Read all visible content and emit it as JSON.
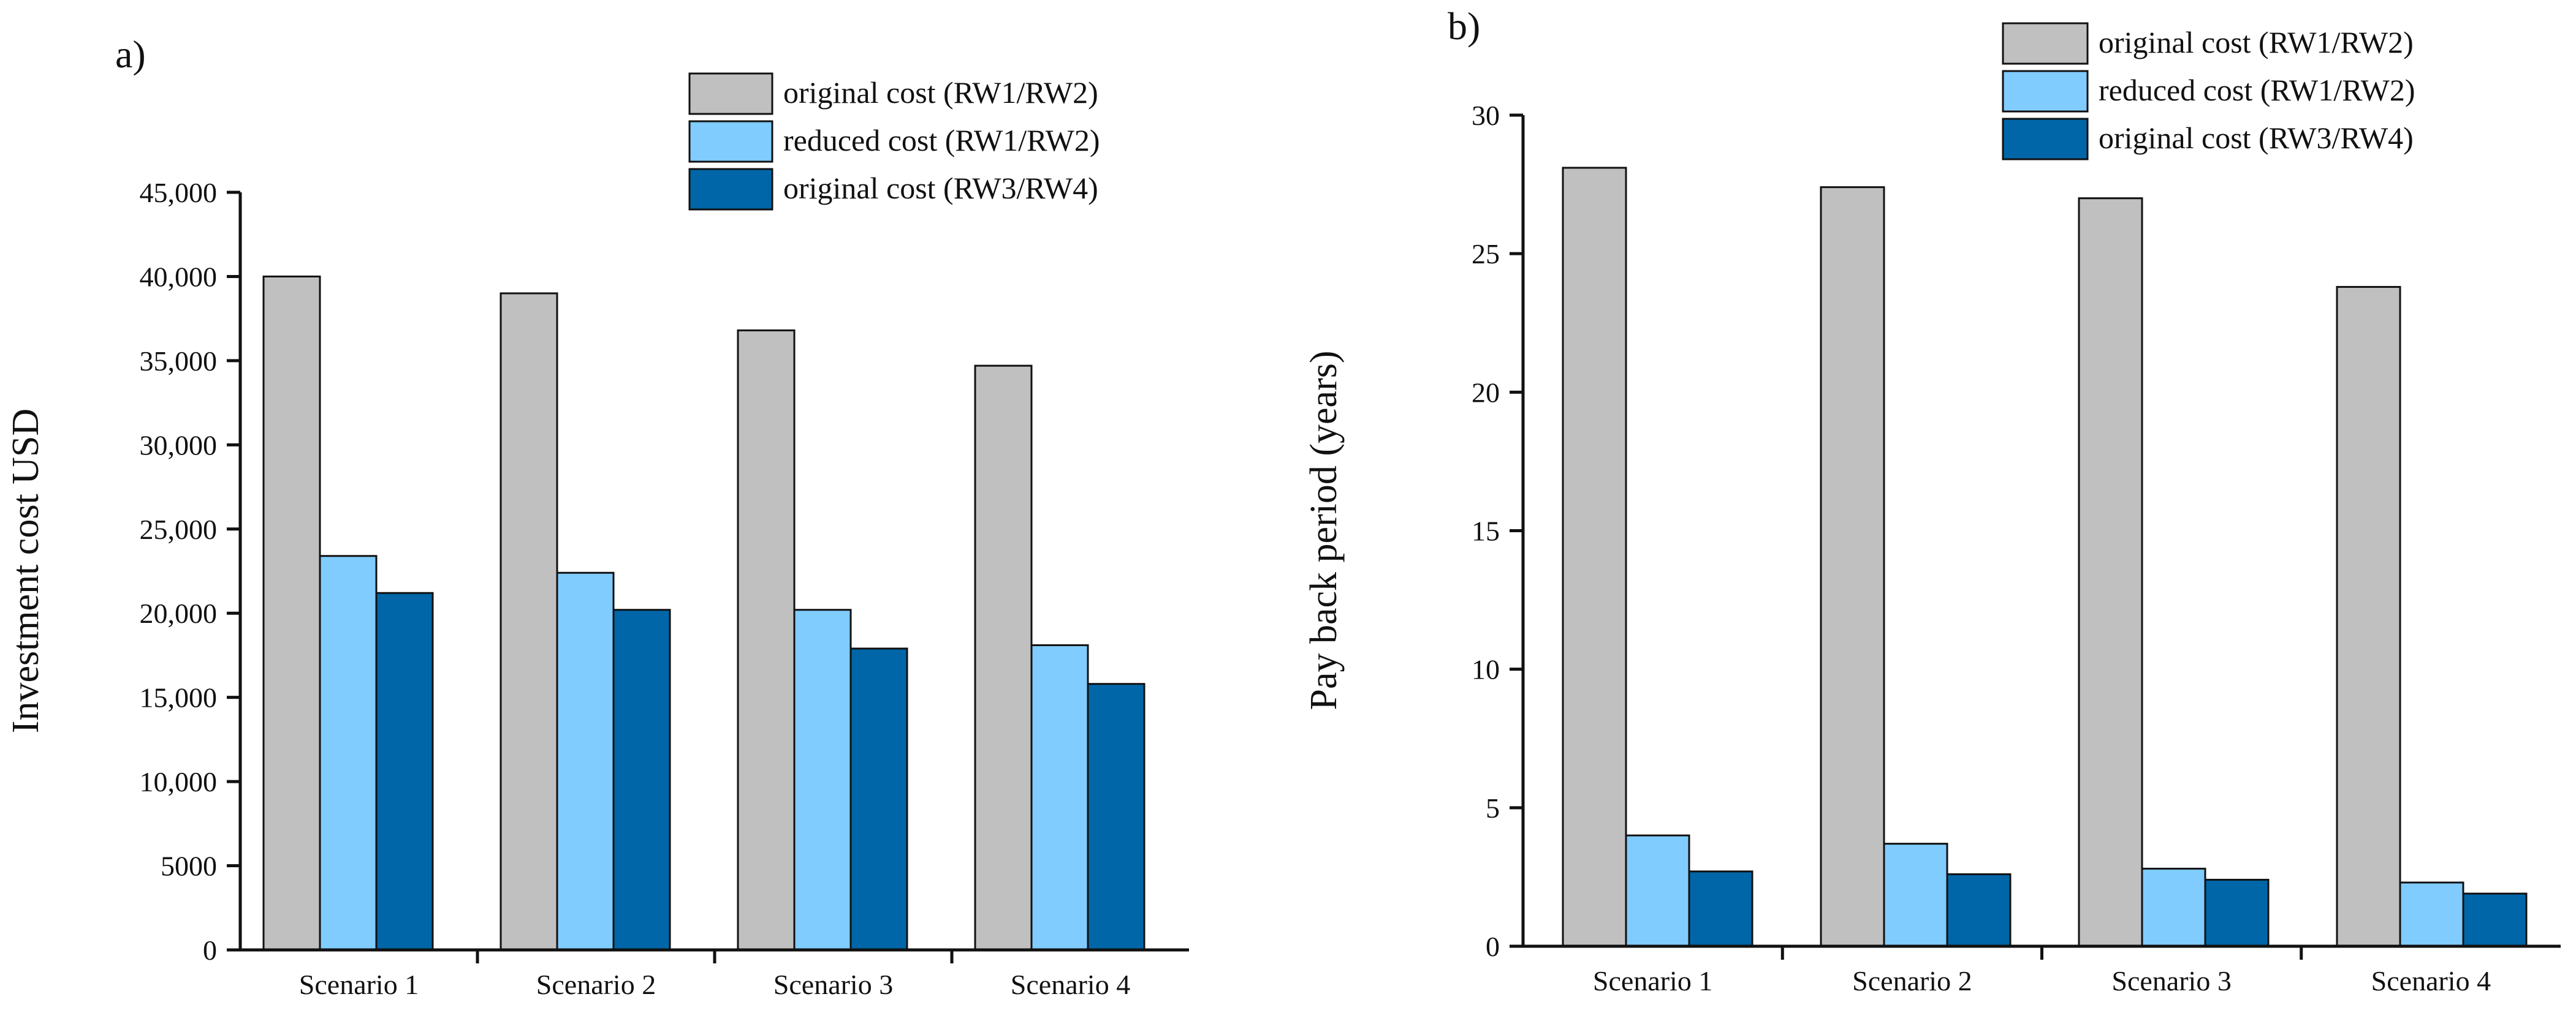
{
  "colors": {
    "original_rw12": "#c0c0c0",
    "reduced_rw12": "#80ccff",
    "original_rw34": "#0066a8",
    "bar_stroke": "#111111"
  },
  "chart_data": [
    {
      "panel_label": "a)",
      "type": "bar",
      "categories": [
        "Scenario 1",
        "Scenario 2",
        "Scenario 3",
        "Scenario 4"
      ],
      "series": [
        {
          "name": "original cost (RW1/RW2)",
          "values": [
            40000,
            39000,
            36800,
            34700
          ]
        },
        {
          "name": "reduced cost (RW1/RW2)",
          "values": [
            23400,
            22400,
            20200,
            18100
          ]
        },
        {
          "name": "original cost (RW3/RW4)",
          "values": [
            21200,
            20200,
            17900,
            15800
          ]
        }
      ],
      "ylabel": "Investment cost USD",
      "xlabel": "",
      "ylim": [
        0,
        45000
      ],
      "yticks": [
        0,
        5000,
        10000,
        15000,
        20000,
        25000,
        30000,
        35000,
        40000,
        45000
      ],
      "ytick_labels": [
        "0",
        "5000",
        "10,000",
        "15,000",
        "20,000",
        "25,000",
        "30,000",
        "35,000",
        "40,000",
        "45,000"
      ],
      "legend": "top-right",
      "grid": false
    },
    {
      "panel_label": "b)",
      "type": "bar",
      "categories": [
        "Scenario 1",
        "Scenario 2",
        "Scenario 3",
        "Scenario 4"
      ],
      "series": [
        {
          "name": "original cost (RW1/RW2)",
          "values": [
            28.1,
            27.4,
            27.0,
            23.8
          ]
        },
        {
          "name": "reduced cost (RW1/RW2)",
          "values": [
            4.0,
            3.7,
            2.8,
            2.3
          ]
        },
        {
          "name": "original cost (RW3/RW4)",
          "values": [
            2.7,
            2.6,
            2.4,
            1.9
          ]
        }
      ],
      "ylabel": "Pay back period (years)",
      "xlabel": "",
      "ylim": [
        0,
        30
      ],
      "yticks": [
        0,
        5,
        10,
        15,
        20,
        25,
        30
      ],
      "ytick_labels": [
        "0",
        "5",
        "10",
        "15",
        "20",
        "25",
        "30"
      ],
      "legend": "top-right",
      "grid": false
    }
  ]
}
